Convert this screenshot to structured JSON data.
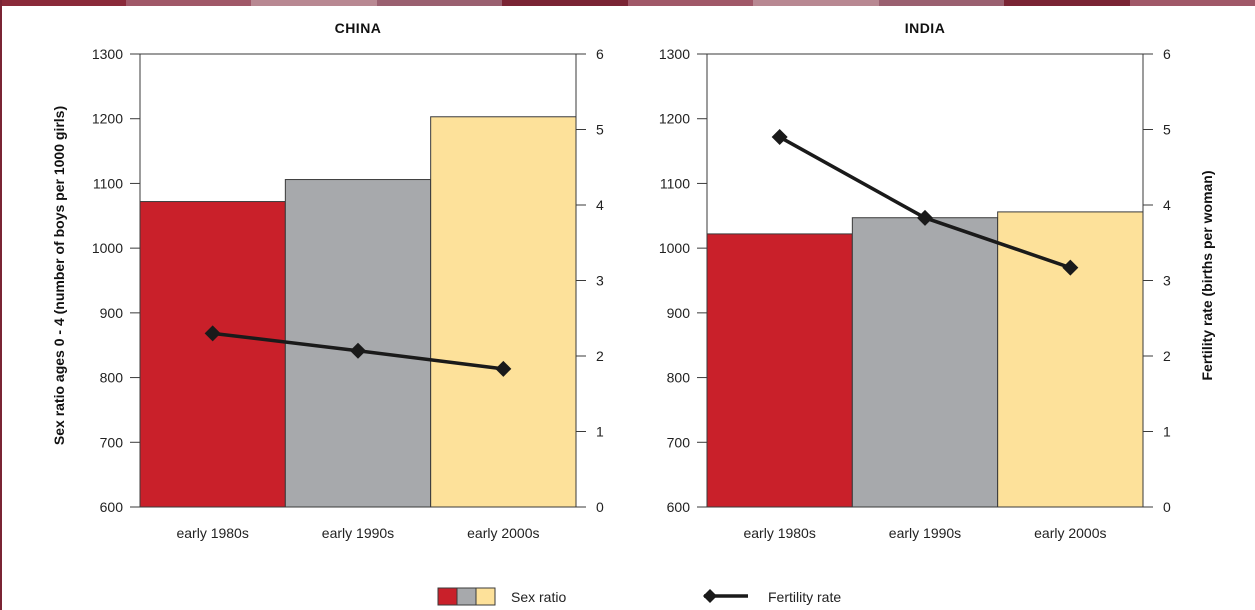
{
  "colors": {
    "bar_1980s": "#c9202a",
    "bar_1990s": "#a7a9ac",
    "bar_2000s": "#fde19a",
    "line": "#1a1a1a",
    "top_band": [
      "#8a2a3a",
      "#a05868",
      "#b88892",
      "#9a6070",
      "#7a2434",
      "#a05868",
      "#b88892",
      "#9a6070",
      "#7a2434",
      "#a05868"
    ],
    "left_rule": "#7a2434"
  },
  "chart_data": [
    {
      "type": "bar",
      "title": "CHINA",
      "categories": [
        "early 1980s",
        "early 1990s",
        "early 2000s"
      ],
      "series": [
        {
          "name": "Sex ratio",
          "axis": "left",
          "values": [
            1072,
            1106,
            1203
          ]
        },
        {
          "name": "Fertility rate",
          "axis": "right",
          "type": "line",
          "values": [
            2.3,
            2.07,
            1.83
          ]
        }
      ],
      "ylabel": "Sex ratio ages 0 - 4 (number of boys per 1000 girls)",
      "ylim": [
        600,
        1300
      ],
      "yticks": [
        "600",
        "700",
        "800",
        "900",
        "1000",
        "1100",
        "1200",
        "1300"
      ],
      "y2label": "",
      "y2lim": [
        0,
        6
      ],
      "y2ticks": [
        "0",
        "1",
        "2",
        "3",
        "4",
        "5",
        "6"
      ]
    },
    {
      "type": "bar",
      "title": "INDIA",
      "categories": [
        "early 1980s",
        "early 1990s",
        "early 2000s"
      ],
      "series": [
        {
          "name": "Sex ratio",
          "axis": "left",
          "values": [
            1022,
            1047,
            1056
          ]
        },
        {
          "name": "Fertility rate",
          "axis": "right",
          "type": "line",
          "values": [
            4.9,
            3.83,
            3.17
          ]
        }
      ],
      "ylabel": "",
      "ylim": [
        600,
        1300
      ],
      "yticks": [
        "600",
        "700",
        "800",
        "900",
        "1000",
        "1100",
        "1200",
        "1300"
      ],
      "y2label": "Fertility rate (births per woman)",
      "y2lim": [
        0,
        6
      ],
      "y2ticks": [
        "0",
        "1",
        "2",
        "3",
        "4",
        "5",
        "6"
      ]
    }
  ],
  "legend": {
    "bars_label": "Sex ratio",
    "line_label": "Fertility rate"
  }
}
